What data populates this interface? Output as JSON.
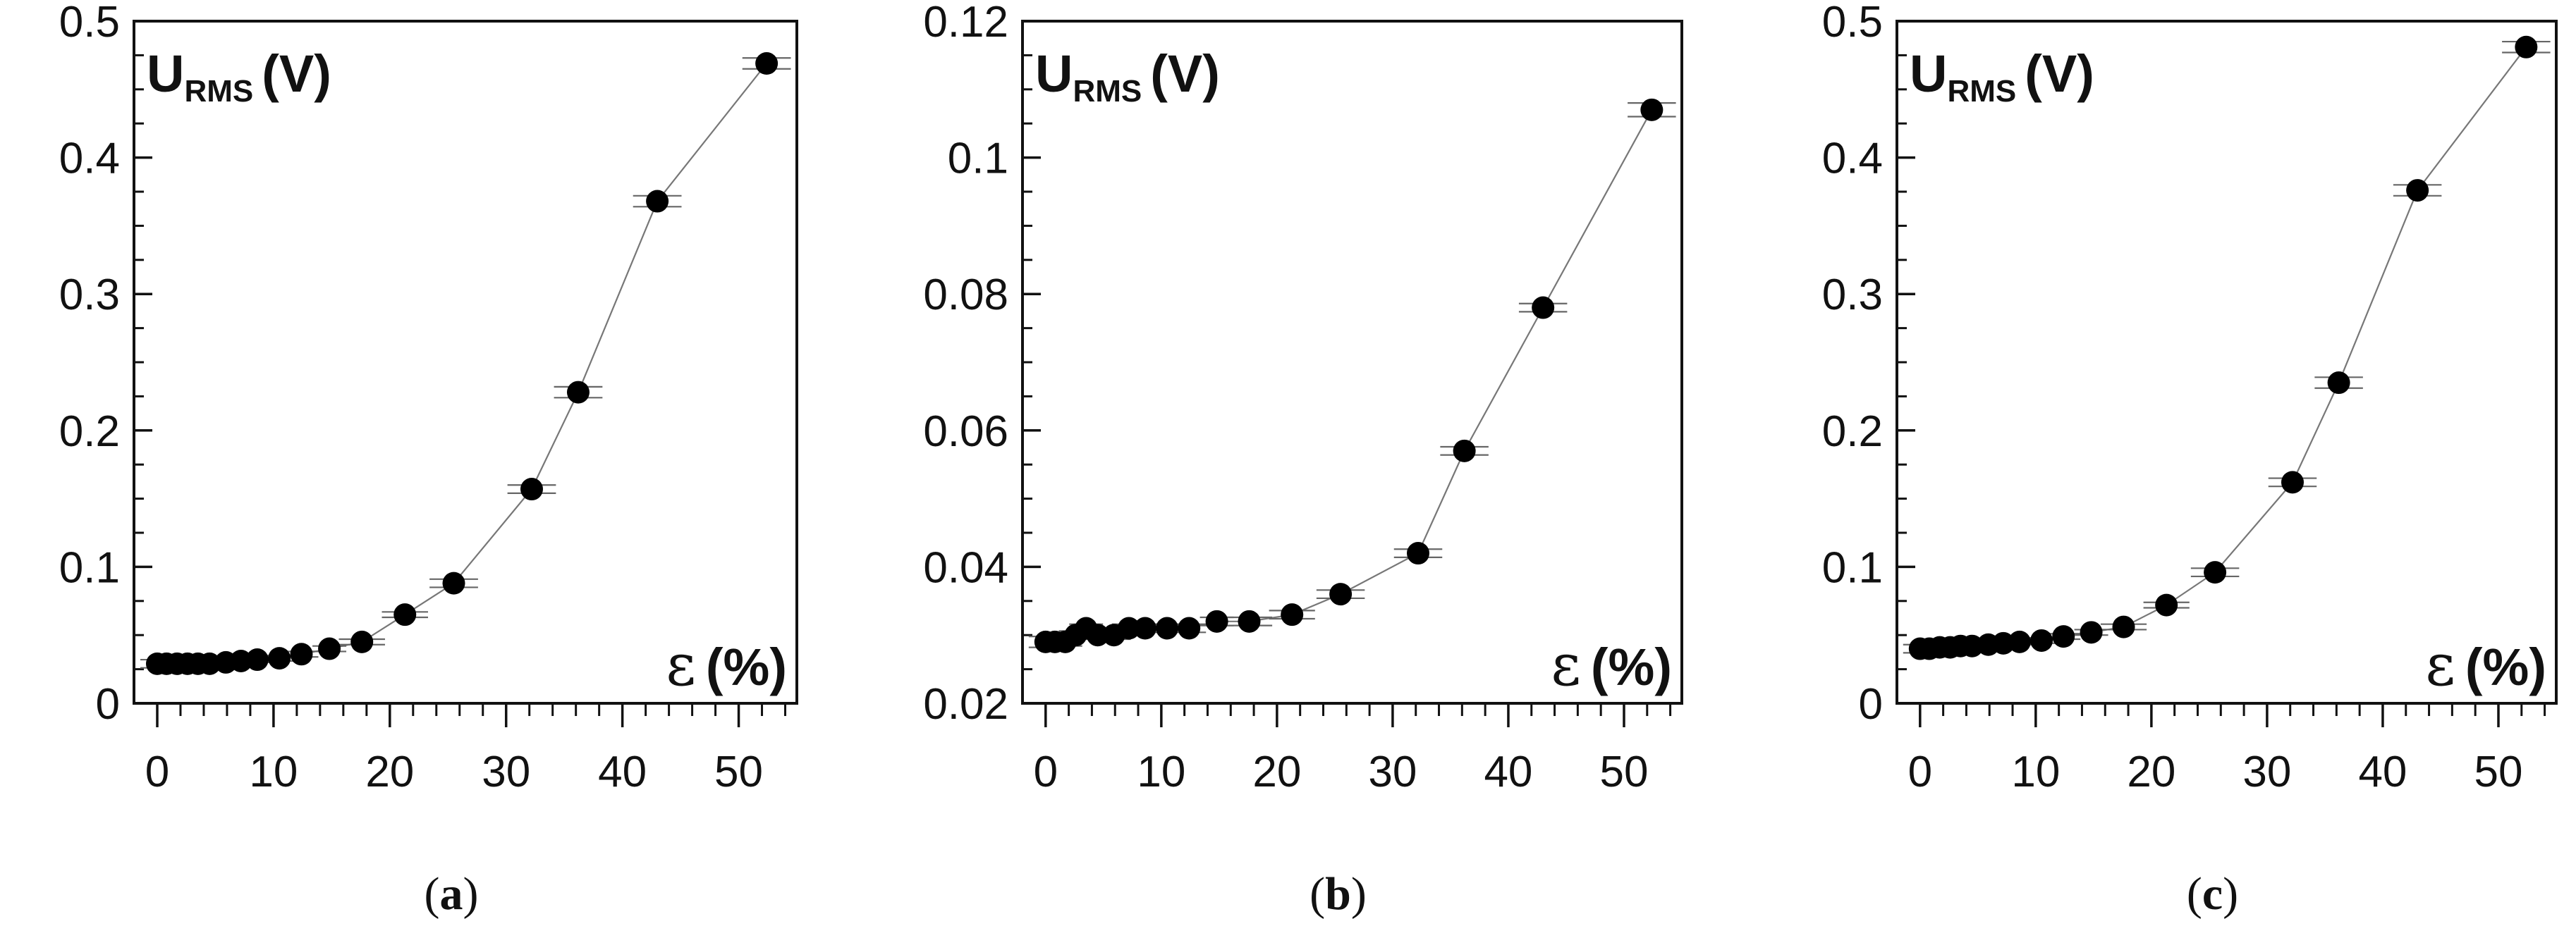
{
  "chart_data": [
    {
      "type": "line",
      "panel_label": "a",
      "ylabel_main": "U",
      "ylabel_sub": "RMS",
      "ylabel_unit": "(V)",
      "xlabel_symbol": "ε",
      "xlabel_unit": "(%)",
      "xlim": [
        -2,
        55
      ],
      "ylim": [
        0,
        0.5
      ],
      "xticks": [
        0,
        10,
        20,
        30,
        40,
        50
      ],
      "yticks": [
        0,
        0.1,
        0.2,
        0.3,
        0.4,
        0.5
      ],
      "ytick_labels": [
        "0",
        "0.1",
        "0.2",
        "0.3",
        "0.4",
        "0.5"
      ],
      "x": [
        0,
        0.8,
        1.7,
        2.6,
        3.5,
        4.5,
        5.9,
        7.2,
        8.6,
        10.5,
        12.4,
        14.8,
        17.6,
        21.3,
        25.5,
        32.2,
        36.2,
        43.0,
        52.4
      ],
      "y": [
        0.029,
        0.029,
        0.029,
        0.029,
        0.029,
        0.029,
        0.03,
        0.031,
        0.032,
        0.033,
        0.036,
        0.04,
        0.045,
        0.065,
        0.088,
        0.157,
        0.228,
        0.368,
        0.469
      ],
      "xerr": [
        0,
        0.5,
        0.5,
        0.5,
        0.5,
        0.5,
        0.5,
        0.5,
        0.5,
        0.5,
        0.6,
        0.8,
        1.5,
        1.5,
        1.6,
        1.6,
        1.6,
        1.6,
        1.6
      ],
      "ybar_gap": [
        0.003,
        0.002,
        0.002,
        0.002,
        0.002,
        0.002,
        0.002,
        0.002,
        0.002,
        0.002,
        0.002,
        0.002,
        0.002,
        0.002,
        0.003,
        0.003,
        0.004,
        0.004,
        0.004
      ]
    },
    {
      "type": "line",
      "panel_label": "b",
      "ylabel_main": "U",
      "ylabel_sub": "RMS",
      "ylabel_unit": "(V)",
      "xlabel_symbol": "ε",
      "xlabel_unit": "(%)",
      "xlim": [
        -2,
        55
      ],
      "ylim": [
        0.02,
        0.12
      ],
      "xticks": [
        0,
        10,
        20,
        30,
        40,
        50
      ],
      "yticks": [
        0.02,
        0.04,
        0.06,
        0.08,
        0.1,
        0.12
      ],
      "ytick_labels": [
        "0.02",
        "0.04",
        "0.06",
        "0.08",
        "0.1",
        "0.12"
      ],
      "x": [
        0,
        0.8,
        1.7,
        2.6,
        3.5,
        4.5,
        5.9,
        7.2,
        8.6,
        10.5,
        12.4,
        14.8,
        17.6,
        21.3,
        25.5,
        32.2,
        36.2,
        43.0,
        52.4
      ],
      "y": [
        0.029,
        0.029,
        0.029,
        0.03,
        0.031,
        0.03,
        0.03,
        0.031,
        0.031,
        0.031,
        0.031,
        0.032,
        0.032,
        0.033,
        0.036,
        0.042,
        0.057,
        0.078,
        0.107
      ],
      "xerr": [
        0,
        0.5,
        0.5,
        0.5,
        0.5,
        0.5,
        0.5,
        0.5,
        0.5,
        0.5,
        0.6,
        0.8,
        1.5,
        1.5,
        1.6,
        1.6,
        1.6,
        1.6,
        1.6
      ],
      "ybar_gap": [
        0.0008,
        0.0006,
        0.0006,
        0.0006,
        0.0006,
        0.0006,
        0.0006,
        0.0006,
        0.0006,
        0.0006,
        0.0006,
        0.0006,
        0.0006,
        0.0006,
        0.0006,
        0.0006,
        0.0006,
        0.0006,
        0.001
      ]
    },
    {
      "type": "line",
      "panel_label": "c",
      "ylabel_main": "U",
      "ylabel_sub": "RMS",
      "ylabel_unit": "(V)",
      "xlabel_symbol": "ε",
      "xlabel_unit": "(%)",
      "xlim": [
        -2,
        55
      ],
      "ylim": [
        0,
        0.5
      ],
      "xticks": [
        0,
        10,
        20,
        30,
        40,
        50
      ],
      "yticks": [
        0,
        0.1,
        0.2,
        0.3,
        0.4,
        0.5
      ],
      "ytick_labels": [
        "0",
        "0.1",
        "0.2",
        "0.3",
        "0.4",
        "0.5"
      ],
      "x": [
        0,
        0.8,
        1.7,
        2.6,
        3.5,
        4.5,
        5.9,
        7.2,
        8.6,
        10.5,
        12.4,
        14.8,
        17.6,
        21.3,
        25.5,
        32.2,
        36.2,
        43.0,
        52.4
      ],
      "y": [
        0.04,
        0.04,
        0.041,
        0.041,
        0.042,
        0.042,
        0.043,
        0.044,
        0.045,
        0.046,
        0.049,
        0.052,
        0.056,
        0.072,
        0.096,
        0.162,
        0.235,
        0.376,
        0.481
      ],
      "xerr": [
        0,
        0.5,
        0.5,
        0.5,
        0.5,
        0.5,
        0.5,
        0.5,
        0.5,
        0.5,
        0.6,
        0.8,
        1.5,
        1.5,
        1.6,
        1.6,
        1.6,
        1.6,
        1.6
      ],
      "ybar_gap": [
        0.003,
        0.002,
        0.002,
        0.002,
        0.002,
        0.002,
        0.002,
        0.002,
        0.002,
        0.002,
        0.002,
        0.002,
        0.002,
        0.002,
        0.003,
        0.003,
        0.004,
        0.004,
        0.004
      ]
    }
  ]
}
